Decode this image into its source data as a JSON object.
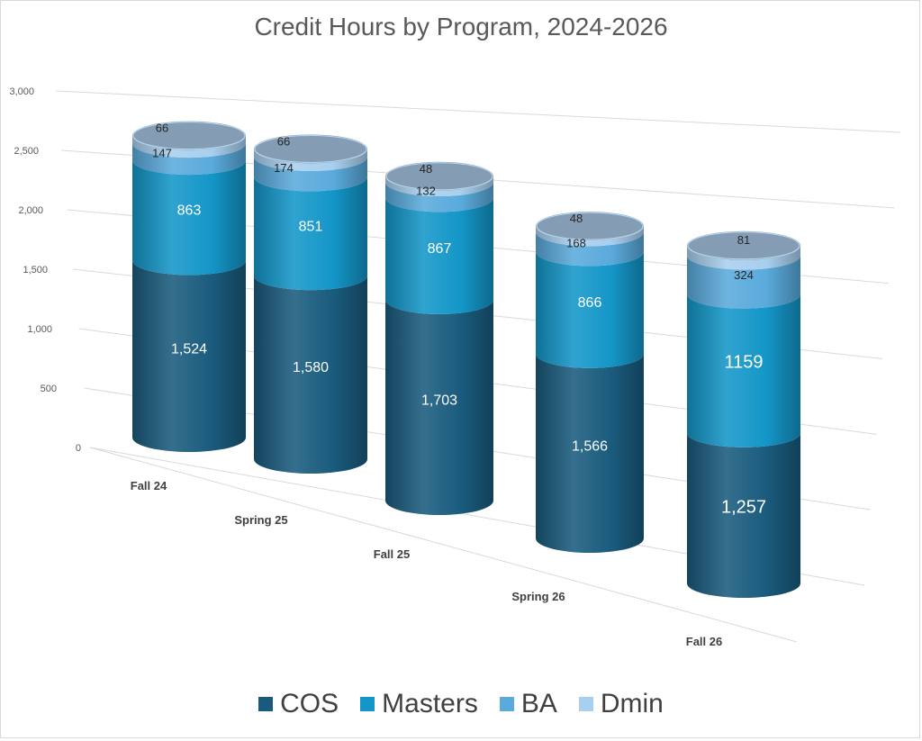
{
  "chart_data": {
    "type": "bar",
    "title": "Credit Hours by Program, 2024-2026",
    "categories": [
      "Fall 24",
      "Spring 25",
      "Fall 25",
      "Spring 26",
      "Fall 26"
    ],
    "series": [
      {
        "name": "COS",
        "values": [
          1524,
          1580,
          1703,
          1566,
          1257
        ],
        "labels": [
          "1,524",
          "1,580",
          "1,703",
          "1,566",
          "1,257"
        ],
        "color": "#1a5b7d"
      },
      {
        "name": "Masters",
        "values": [
          863,
          851,
          867,
          866,
          1159
        ],
        "labels": [
          "863",
          "851",
          "867",
          "866",
          "1159"
        ],
        "color": "#1496c8"
      },
      {
        "name": "BA",
        "values": [
          147,
          174,
          132,
          168,
          324
        ],
        "labels": [
          "147",
          "174",
          "132",
          "168",
          "324"
        ],
        "color": "#5aaadc"
      },
      {
        "name": "Dmin",
        "values": [
          66,
          66,
          48,
          48,
          81
        ],
        "labels": [
          "66",
          "66",
          "48",
          "48",
          "81"
        ],
        "color": "#a8cfee"
      }
    ],
    "yticks": [
      "0",
      "500",
      "1,000",
      "1,500",
      "2,000",
      "2,500",
      "3,000"
    ],
    "ylim": [
      0,
      3000
    ],
    "stacked": true,
    "shape": "3d-cylinder",
    "grid": true,
    "legend_position": "bottom"
  }
}
